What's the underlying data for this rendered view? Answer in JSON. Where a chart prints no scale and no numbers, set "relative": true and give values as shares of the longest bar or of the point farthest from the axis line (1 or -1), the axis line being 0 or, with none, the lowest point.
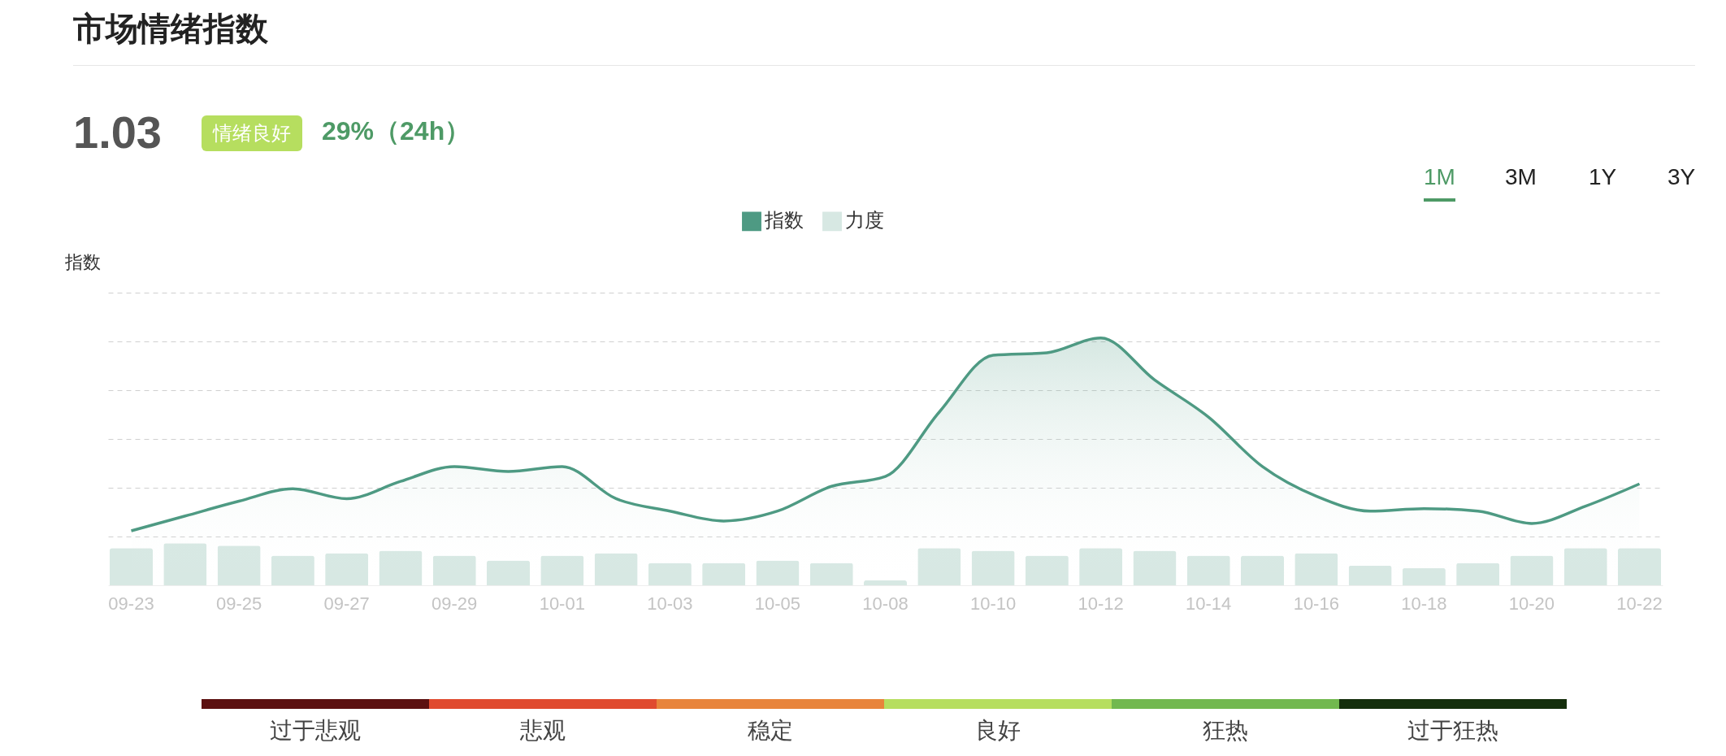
{
  "chart_data": {
    "type": "area",
    "title": "市场情绪指数",
    "ylabel": "指数",
    "relative": true,
    "grid": "y",
    "legend": "top",
    "categories": [
      "09-23",
      null,
      "09-25",
      null,
      "09-27",
      null,
      "09-29",
      null,
      "10-01",
      null,
      "10-03",
      null,
      "10-05",
      null,
      "10-08",
      null,
      "10-10",
      null,
      "10-12",
      null,
      "10-14",
      null,
      "10-16",
      null,
      "10-18",
      null,
      "10-20",
      null,
      "10-22"
    ],
    "series": [
      {
        "name": "指数",
        "color": "#4e9a83",
        "values": [
          0.22,
          0.28,
          0.34,
          0.39,
          0.35,
          0.42,
          0.48,
          0.46,
          0.48,
          0.35,
          0.3,
          0.26,
          0.3,
          0.4,
          0.44,
          0.7,
          0.93,
          0.94,
          1.0,
          0.83,
          0.68,
          0.48,
          0.36,
          0.3,
          0.31,
          0.3,
          0.25,
          0.32,
          0.41
        ]
      },
      {
        "name": "力度",
        "type": "bar",
        "color": "#d7e8e3",
        "values": [
          0.15,
          0.17,
          0.16,
          0.12,
          0.13,
          0.14,
          0.12,
          0.1,
          0.12,
          0.13,
          0.09,
          0.09,
          0.1,
          0.09,
          0.02,
          0.15,
          0.14,
          0.12,
          0.15,
          0.14,
          0.12,
          0.12,
          0.13,
          0.08,
          0.07,
          0.09,
          0.12,
          0.15,
          0.15
        ]
      }
    ],
    "annotations": [
      "1.03",
      "情绪良好",
      "29%（24h）",
      "1M",
      "3M",
      "1Y",
      "3Y",
      "过于悲观",
      "悲观",
      "稳定",
      "良好",
      "狂热",
      "过于狂热"
    ]
  }
}
